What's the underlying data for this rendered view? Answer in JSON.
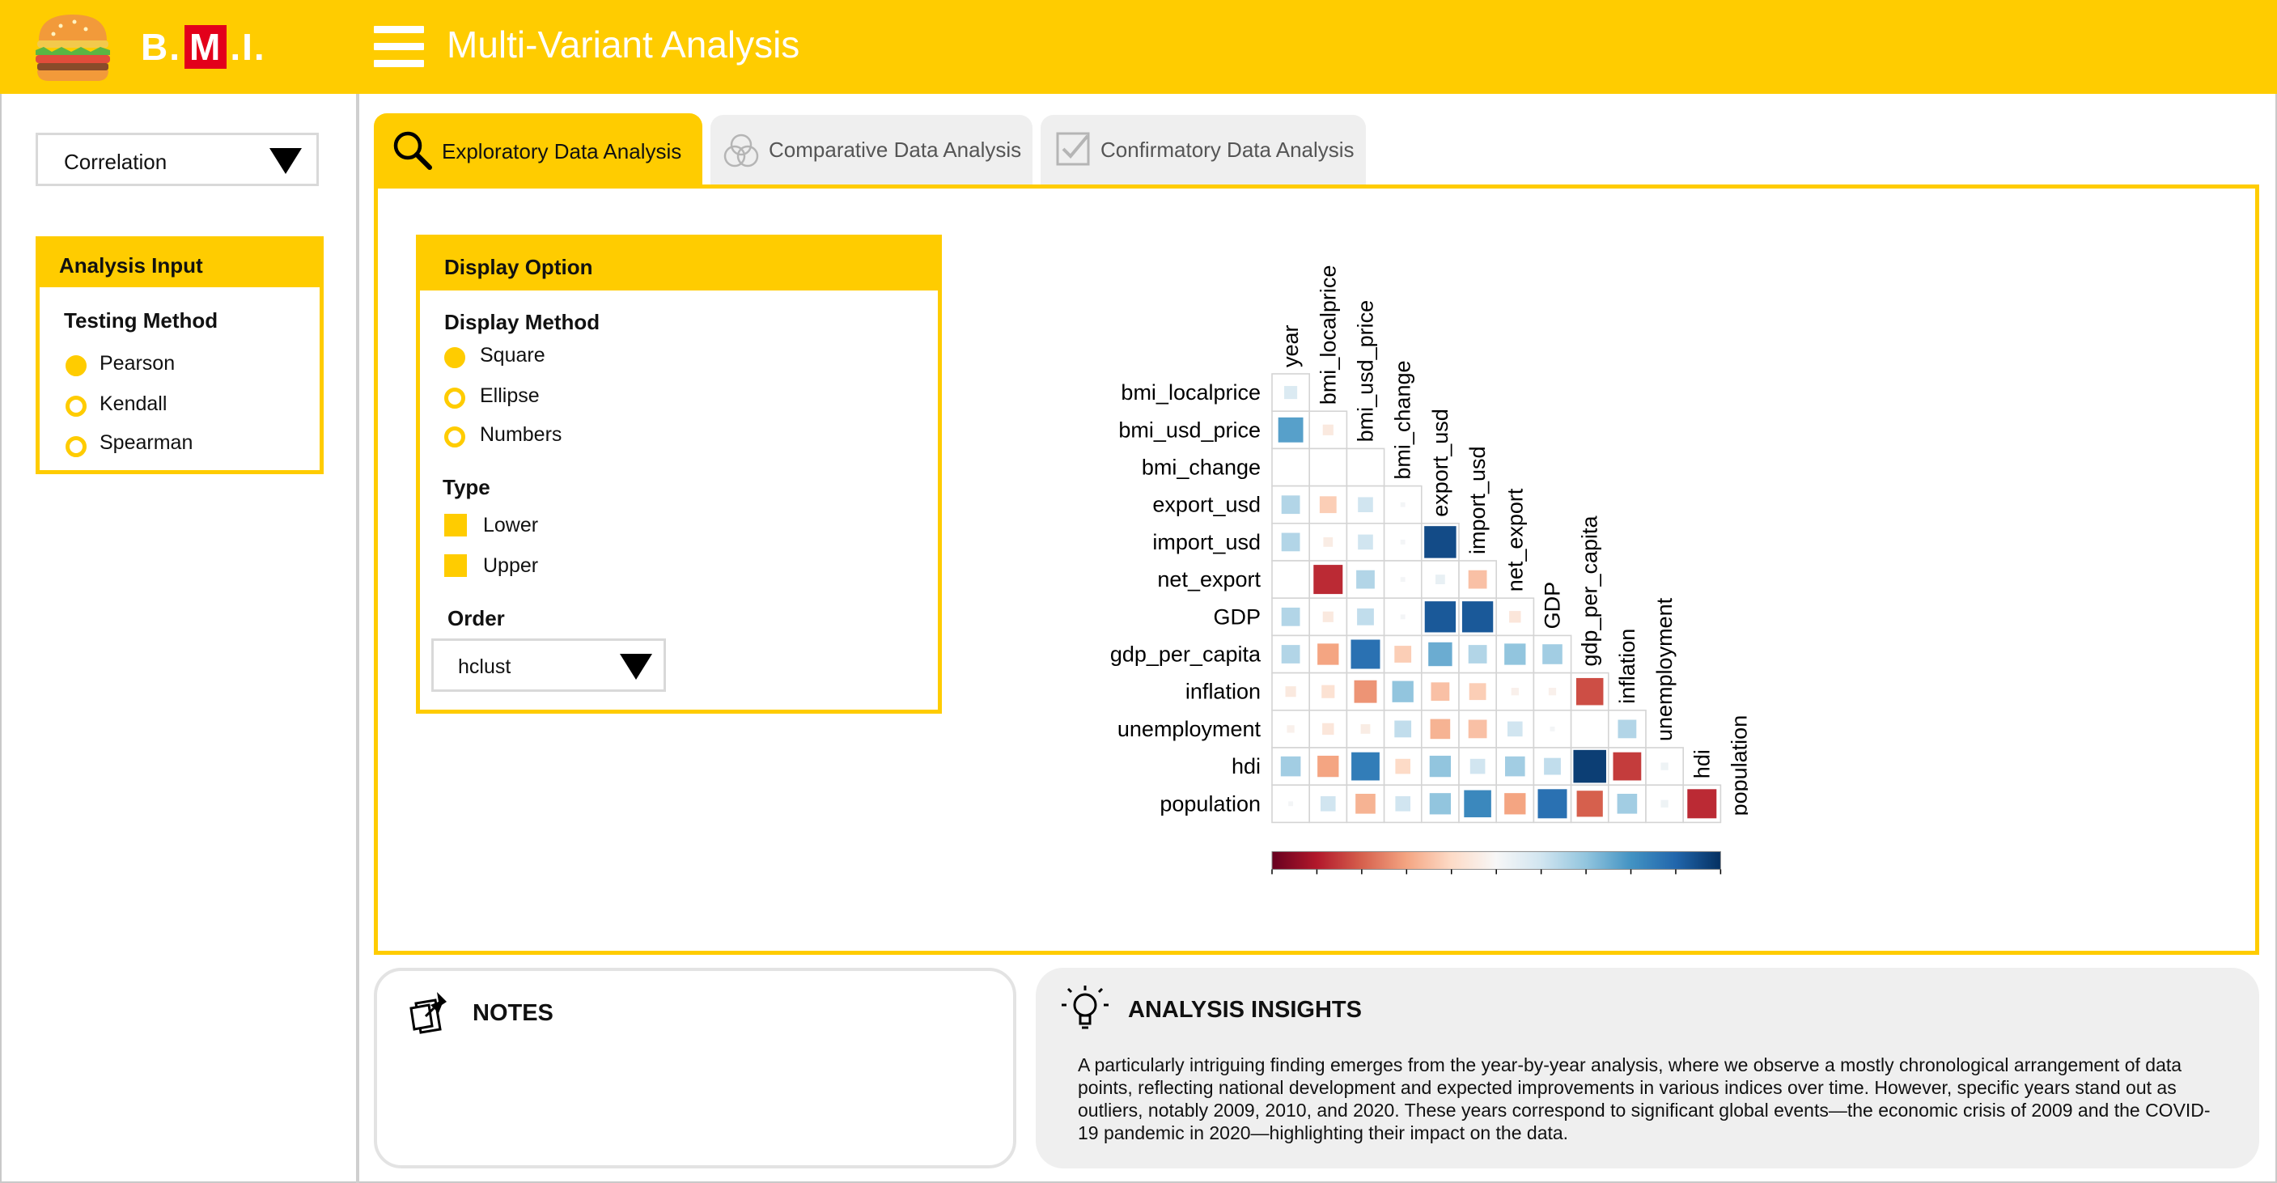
{
  "header": {
    "logo_text_left": "B.",
    "logo_text_m": "M",
    "logo_text_right": ".I.",
    "title": "Multi-Variant Analysis",
    "color": "#ffcc00"
  },
  "sidebar": {
    "analysis_select": "Correlation",
    "analysis_input": {
      "heading": "Analysis Input",
      "testing_method_label": "Testing Method",
      "options": [
        "Pearson",
        "Kendall",
        "Spearman"
      ],
      "selected": "Pearson"
    }
  },
  "tabs": [
    {
      "label": "Exploratory Data Analysis",
      "icon": "search-icon",
      "active": true
    },
    {
      "label": "Comparative Data Analysis",
      "icon": "venn-icon",
      "active": false
    },
    {
      "label": "Confirmatory Data Analysis",
      "icon": "checkbox-icon",
      "active": false
    }
  ],
  "display_option": {
    "heading": "Display Option",
    "method_label": "Display Method",
    "methods": [
      "Square",
      "Ellipse",
      "Numbers"
    ],
    "selected_method": "Square",
    "type_label": "Type",
    "types": [
      "Lower",
      "Upper"
    ],
    "order_label": "Order",
    "order_value": "hclust"
  },
  "chart_data": {
    "type": "heatmap",
    "variables": [
      "year",
      "bmi_localprice",
      "bmi_usd_price",
      "bmi_change",
      "export_usd",
      "import_usd",
      "net_export",
      "GDP",
      "gdp_per_capita",
      "inflation",
      "unemployment",
      "hdi",
      "population"
    ],
    "matrix_type": "lower",
    "method": "square",
    "values": [
      [
        0.15
      ],
      [
        0.55,
        -0.1
      ],
      [
        0.0,
        0.0,
        0.0
      ],
      [
        0.3,
        -0.25,
        0.2,
        0.02
      ],
      [
        0.3,
        -0.08,
        0.2,
        0.02,
        0.9
      ],
      [
        0.0,
        -0.75,
        0.3,
        0.02,
        0.08,
        -0.3
      ],
      [
        0.3,
        -0.1,
        0.25,
        0.02,
        0.85,
        0.85,
        -0.12
      ],
      [
        0.3,
        -0.4,
        0.75,
        -0.25,
        0.5,
        0.3,
        0.4,
        0.35
      ],
      [
        -0.1,
        -0.15,
        -0.45,
        0.4,
        -0.3,
        -0.25,
        -0.05,
        -0.05,
        -0.65
      ],
      [
        -0.05,
        -0.12,
        -0.08,
        0.25,
        -0.35,
        -0.3,
        0.2,
        0.02,
        0.0,
        0.3
      ],
      [
        0.35,
        -0.4,
        0.7,
        -0.2,
        0.4,
        0.2,
        0.35,
        0.25,
        0.95,
        -0.7,
        0.05
      ],
      [
        0.02,
        0.2,
        -0.35,
        0.2,
        0.4,
        0.65,
        -0.4,
        0.75,
        -0.6,
        0.35,
        0.05,
        -0.75
      ]
    ],
    "colorbar_ticks": [
      "-1",
      "-0.8",
      "-0.6",
      "-0.4",
      "-0.2",
      "0",
      "0.2",
      "0.4",
      "0.6",
      "0.8",
      "1"
    ],
    "colorbar_range": [
      -1,
      1
    ],
    "colors": {
      "negative": "#67001f",
      "neutral": "#f7f7f7",
      "positive": "#053061"
    }
  },
  "notes": {
    "title": "NOTES"
  },
  "insights": {
    "title": "ANALYSIS INSIGHTS",
    "text": "A particularly intriguing finding emerges from the year-by-year analysis, where we observe a mostly chronological arrangement of data points, reflecting national development and expected improvements in various indices over time. However, specific years stand out as outliers, notably 2009, 2010, and 2020. These years correspond to significant global events—the economic crisis of 2009 and the COVID-19 pandemic in 2020—highlighting their impact on the data."
  }
}
